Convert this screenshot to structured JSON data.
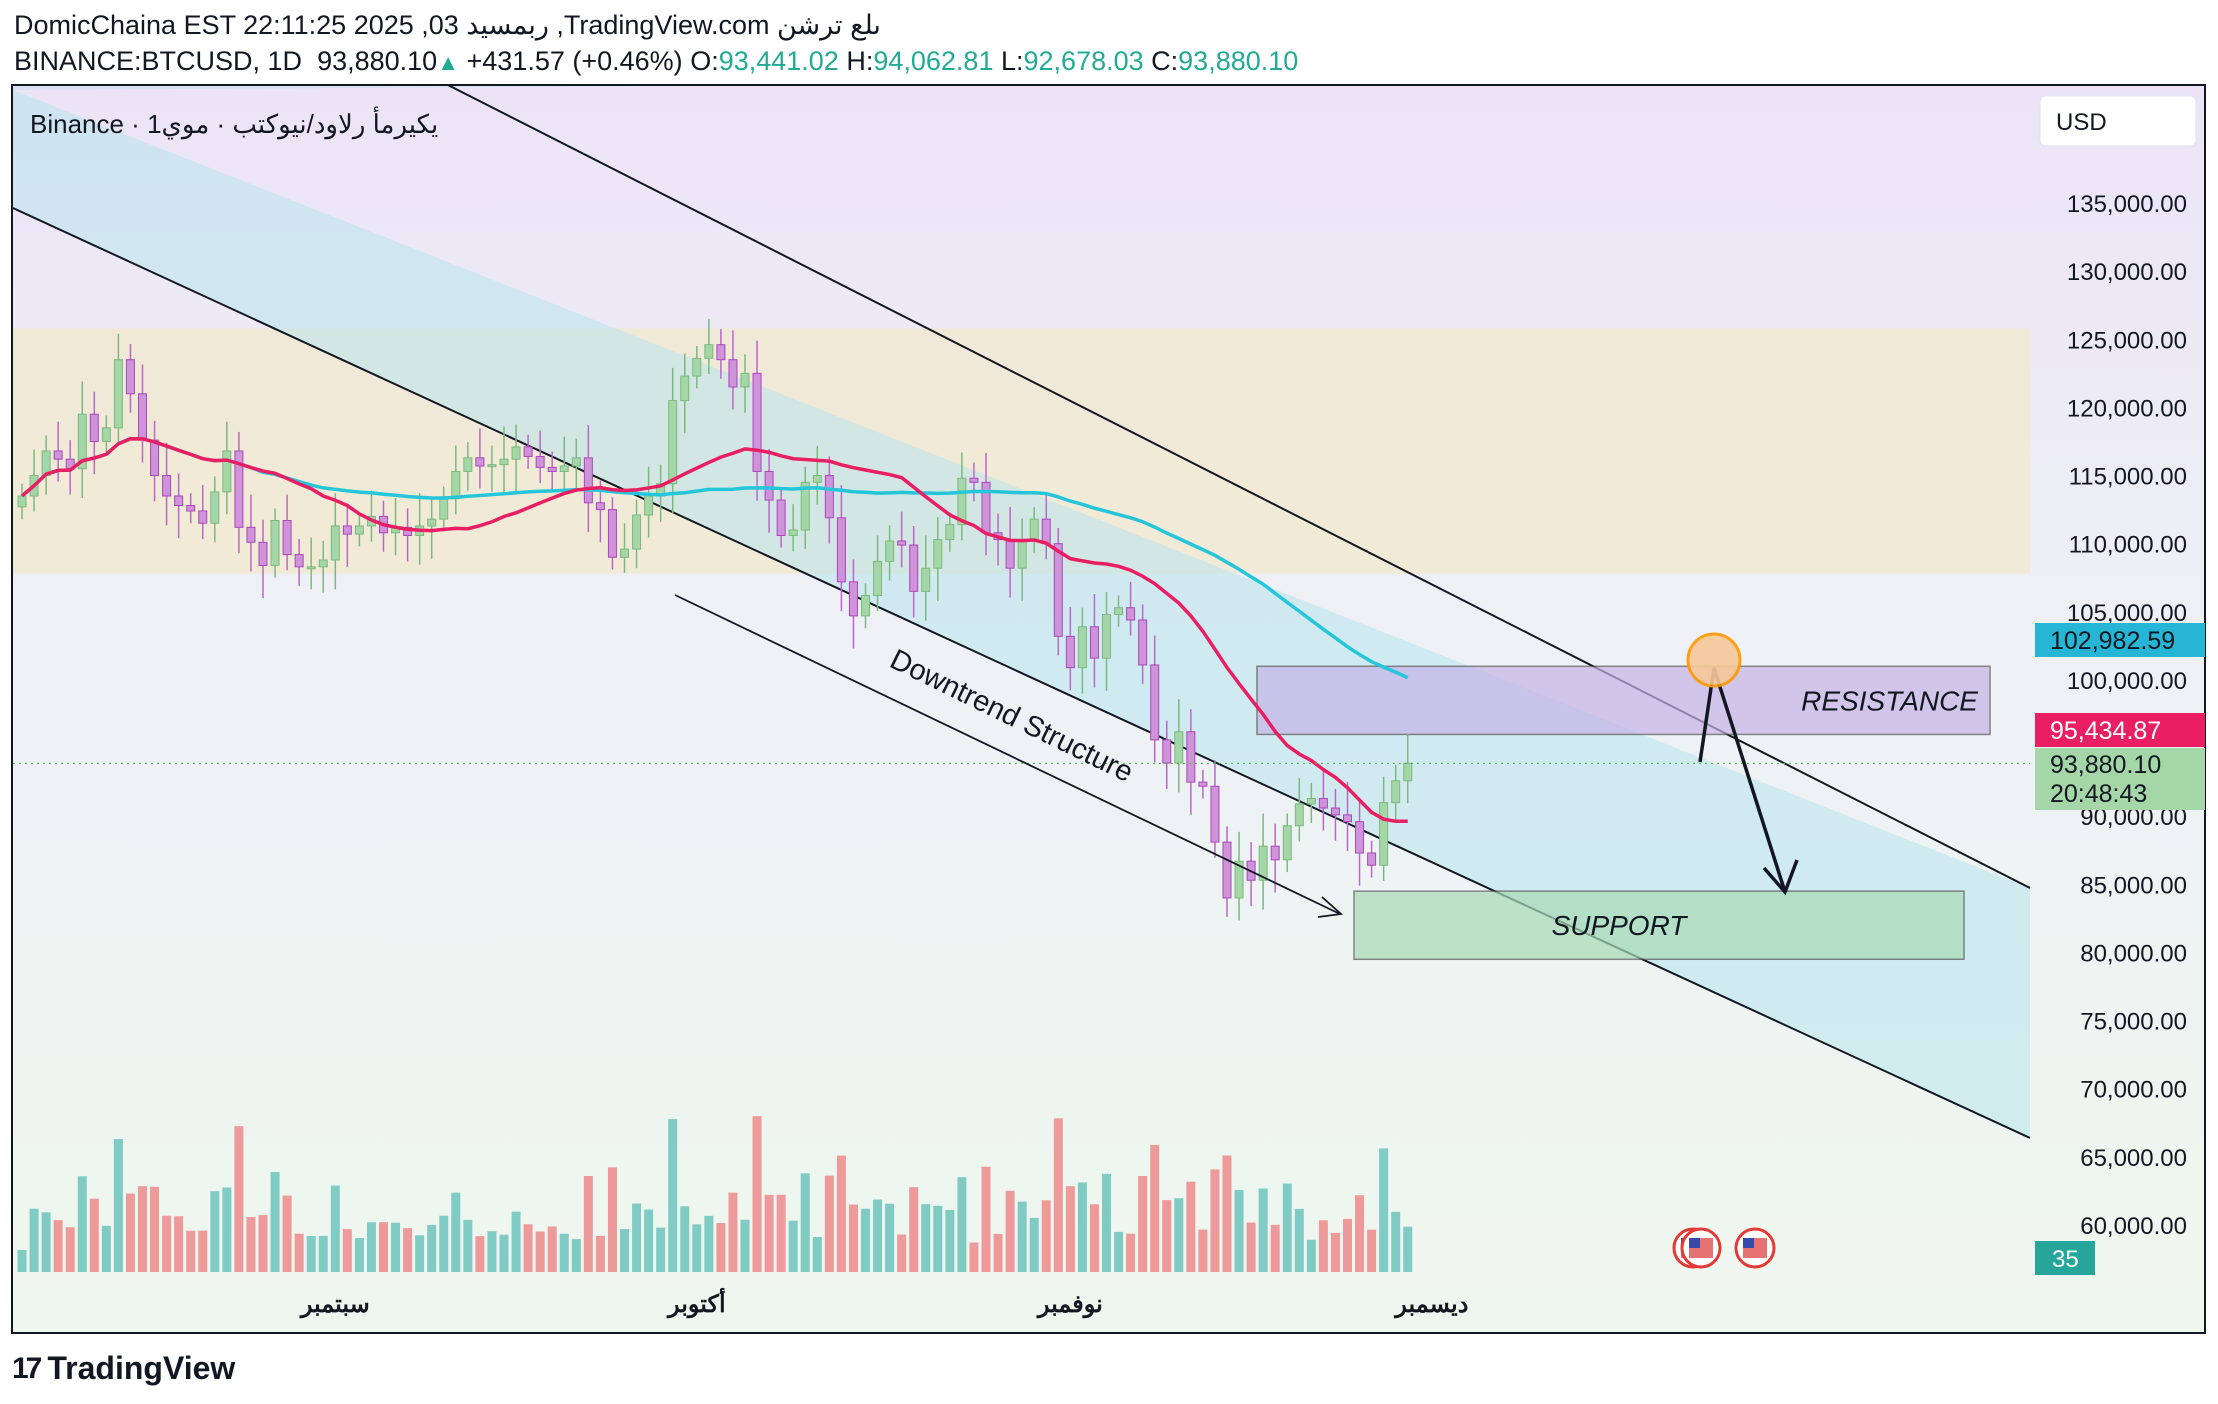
{
  "header": {
    "line1": "DomicChaina EST 22:11:25 2025 ,03 ربمسيد ,TradingView.com ىلع ترشن",
    "symbol": "BINANCE:BTCUSD, 1D",
    "last": "93,880.10",
    "change": "+431.57 (+0.46%)",
    "o_label": "O:",
    "o": "93,441.02",
    "h_label": "H:",
    "h": "94,062.81",
    "l_label": "L:",
    "l": "92,678.03",
    "c_label": "C:",
    "c": "93,880.10"
  },
  "legend_text": "Binance · يكيرمأ رلاود/نيوكتب · موي1",
  "currency_button": "USD",
  "brand": "TradingView",
  "colors": {
    "up": "#22ab94",
    "up_candle": "#a5d6a7",
    "down_candle": "#ce93d8",
    "ma_fast": "#e91e63",
    "ma_slow": "#26c6da",
    "vol_up": "#80cbc4",
    "vol_down": "#ef9a9a"
  },
  "chart_data": {
    "type": "candlestick",
    "title": "",
    "xlabel": "",
    "ylabel": "",
    "ylim": [
      57000,
      140000
    ],
    "y_ticks": [
      "135,000.00",
      "130,000.00",
      "125,000.00",
      "120,000.00",
      "115,000.00",
      "110,000.00",
      "105,000.00",
      "100,000.00",
      "90,000.00",
      "85,000.00",
      "80,000.00",
      "75,000.00",
      "70,000.00",
      "65,000.00",
      "60,000.00"
    ],
    "y_tick_values": [
      135000,
      130000,
      125000,
      120000,
      115000,
      110000,
      105000,
      100000,
      90000,
      85000,
      80000,
      75000,
      70000,
      65000,
      60000
    ],
    "x_month_labels": [
      {
        "label": "سبتمبر",
        "date": "2025-09-01"
      },
      {
        "label": "أكتوبر",
        "date": "2025-10-01"
      },
      {
        "label": "نوفمبر",
        "date": "2025-11-01"
      },
      {
        "label": "ديسمبر",
        "date": "2025-12-01"
      }
    ],
    "start_date": "2025-08-06",
    "closes": [
      113500,
      115000,
      116800,
      116200,
      115500,
      119500,
      117500,
      118500,
      123500,
      121000,
      117600,
      115000,
      113500,
      112800,
      112400,
      111500,
      113800,
      116800,
      111200,
      110100,
      108400,
      111700,
      109200,
      108300,
      108300,
      108800,
      111300,
      110700,
      111300,
      112000,
      110800,
      111200,
      110600,
      111300,
      111800,
      113300,
      115300,
      116300,
      115700,
      115800,
      116200,
      117100,
      116400,
      115600,
      115300,
      115700,
      116300,
      113000,
      112500,
      109000,
      109600,
      112100,
      113500,
      114400,
      120500,
      122300,
      123600,
      124600,
      123500,
      121500,
      122500,
      115300,
      113200,
      110600,
      111000,
      114500,
      115000,
      111900,
      107200,
      104700,
      106200,
      108700,
      110200,
      109900,
      106500,
      108200,
      110300,
      111400,
      114800,
      114500,
      110800,
      110300,
      108200,
      110200,
      111800,
      110000,
      103200,
      100900,
      103900,
      101600,
      104800,
      105300,
      104400,
      101100,
      95600,
      93900,
      96200,
      92500,
      92200,
      88100,
      84000,
      86700,
      85300,
      87800,
      86800,
      89300,
      90900,
      91300,
      90600,
      90100,
      89600,
      87300,
      86400,
      91000,
      92600,
      93880
    ],
    "candles_note": "OHLC reconstructed from visible candles; daily from start_date",
    "ma_fast_last": "95,434.87",
    "ma_slow_last": "102,982.59",
    "price_last": "93,880.10",
    "countdown": "20:48:43",
    "volume_badge": "35",
    "zones": [
      {
        "label": "RESISTANCE",
        "from": 96000,
        "to": 101000
      },
      {
        "label": "SUPPORT",
        "from": 79500,
        "to": 84500
      }
    ],
    "range_band": {
      "from": 107800,
      "to": 125800
    },
    "annotation": "Downtrend Structure"
  }
}
